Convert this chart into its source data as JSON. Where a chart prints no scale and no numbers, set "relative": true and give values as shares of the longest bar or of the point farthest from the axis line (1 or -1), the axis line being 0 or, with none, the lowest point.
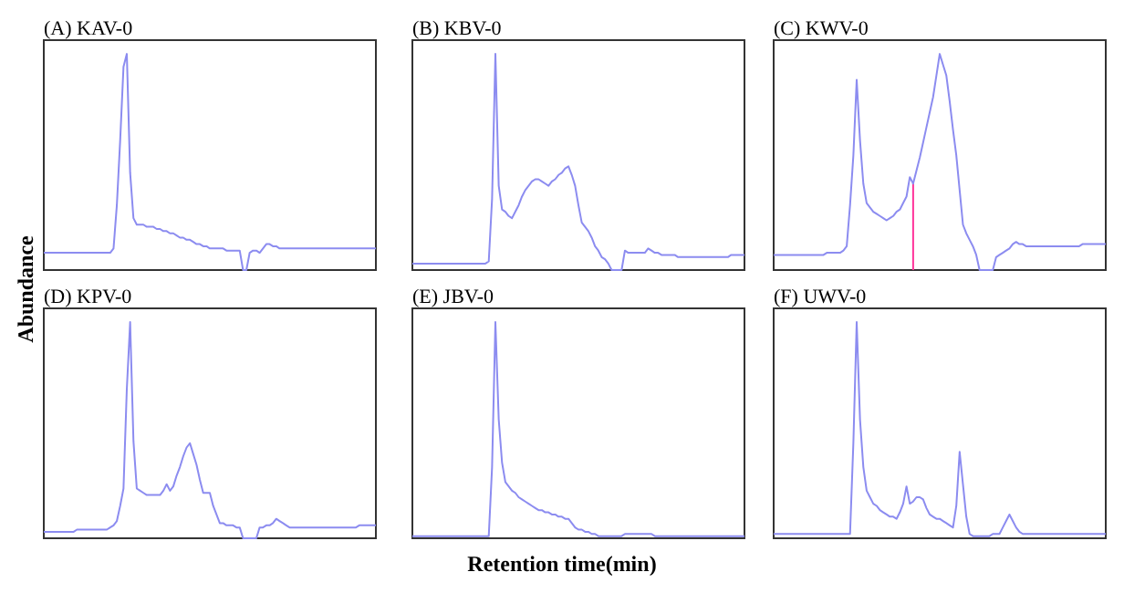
{
  "chart_data": [
    {
      "type": "line",
      "title": "(A) KAV-0",
      "ylabel": "Abundance",
      "relative": true,
      "color": "#8c8cf0",
      "categories": [
        null,
        null,
        null,
        null,
        null,
        null,
        null,
        null,
        null,
        null,
        null,
        null,
        null,
        null,
        null,
        null,
        null,
        null,
        null,
        null,
        null,
        null,
        null,
        null,
        null,
        null,
        null,
        null,
        null,
        null,
        null,
        null,
        null,
        null,
        null,
        null,
        null,
        null,
        null,
        null,
        null,
        null,
        null,
        null,
        null,
        null,
        null,
        null,
        null,
        null,
        null,
        null,
        null,
        null,
        null,
        null,
        null,
        null,
        null,
        null,
        null,
        null,
        null,
        null,
        null,
        null,
        null,
        null,
        null,
        null,
        null,
        null,
        null,
        null,
        null,
        null,
        null,
        null,
        null,
        null,
        null,
        null,
        null,
        null,
        null,
        null,
        null,
        null,
        null,
        null,
        null,
        null,
        null,
        null,
        null,
        null,
        null,
        null,
        null,
        null,
        null
      ],
      "values": [
        0.08,
        0.08,
        0.08,
        0.08,
        0.08,
        0.08,
        0.08,
        0.08,
        0.08,
        0.08,
        0.08,
        0.08,
        0.08,
        0.08,
        0.08,
        0.08,
        0.08,
        0.08,
        0.08,
        0.08,
        0.08,
        0.1,
        0.3,
        0.6,
        0.94,
        1,
        0.45,
        0.24,
        0.21,
        0.21,
        0.21,
        0.2,
        0.2,
        0.2,
        0.19,
        0.19,
        0.18,
        0.18,
        0.17,
        0.17,
        0.16,
        0.15,
        0.15,
        0.14,
        0.14,
        0.13,
        0.12,
        0.12,
        0.11,
        0.11,
        0.1,
        0.1,
        0.1,
        0.1,
        0.1,
        0.09,
        0.09,
        0.09,
        0.09,
        0.09,
        0,
        0,
        0.08,
        0.09,
        0.09,
        0.08,
        0.1,
        0.12,
        0.12,
        0.11,
        0.11,
        0.1,
        0.1,
        0.1,
        0.1,
        0.1,
        0.1,
        0.1,
        0.1,
        0.1,
        0.1,
        0.1,
        0.1,
        0.1,
        0.1,
        0.1,
        0.1,
        0.1,
        0.1,
        0.1,
        0.1,
        0.1,
        0.1,
        0.1,
        0.1,
        0.1,
        0.1,
        0.1,
        0.1,
        0.1,
        0.1
      ]
    },
    {
      "type": "line",
      "title": "(B) KBV-0",
      "relative": true,
      "color": "#8c8cf0",
      "categories": [
        null,
        null,
        null,
        null,
        null,
        null,
        null,
        null,
        null,
        null,
        null,
        null,
        null,
        null,
        null,
        null,
        null,
        null,
        null,
        null,
        null,
        null,
        null,
        null,
        null,
        null,
        null,
        null,
        null,
        null,
        null,
        null,
        null,
        null,
        null,
        null,
        null,
        null,
        null,
        null,
        null,
        null,
        null,
        null,
        null,
        null,
        null,
        null,
        null,
        null,
        null,
        null,
        null,
        null,
        null,
        null,
        null,
        null,
        null,
        null,
        null,
        null,
        null,
        null,
        null,
        null,
        null,
        null,
        null,
        null,
        null,
        null,
        null,
        null,
        null,
        null,
        null,
        null,
        null,
        null,
        null,
        null,
        null,
        null,
        null,
        null,
        null,
        null,
        null,
        null,
        null,
        null,
        null,
        null,
        null,
        null,
        null,
        null,
        null,
        null,
        null
      ],
      "values": [
        0.03,
        0.03,
        0.03,
        0.03,
        0.03,
        0.03,
        0.03,
        0.03,
        0.03,
        0.03,
        0.03,
        0.03,
        0.03,
        0.03,
        0.03,
        0.03,
        0.03,
        0.03,
        0.03,
        0.03,
        0.03,
        0.03,
        0.03,
        0.04,
        0.33,
        1,
        0.39,
        0.28,
        0.27,
        0.25,
        0.24,
        0.27,
        0.3,
        0.34,
        0.37,
        0.39,
        0.41,
        0.42,
        0.42,
        0.41,
        0.4,
        0.39,
        0.41,
        0.42,
        0.44,
        0.45,
        0.47,
        0.48,
        0.44,
        0.39,
        0.3,
        0.22,
        0.2,
        0.18,
        0.15,
        0.11,
        0.09,
        0.06,
        0.05,
        0.03,
        0,
        0,
        0,
        0,
        0.09,
        0.08,
        0.08,
        0.08,
        0.08,
        0.08,
        0.08,
        0.1,
        0.09,
        0.08,
        0.08,
        0.07,
        0.07,
        0.07,
        0.07,
        0.07,
        0.06,
        0.06,
        0.06,
        0.06,
        0.06,
        0.06,
        0.06,
        0.06,
        0.06,
        0.06,
        0.06,
        0.06,
        0.06,
        0.06,
        0.06,
        0.06,
        0.07,
        0.07,
        0.07,
        0.07,
        0.07
      ]
    },
    {
      "type": "line",
      "title": "(C) KWV-0",
      "relative": true,
      "color": "#8c8cf0",
      "categories": [
        null,
        null,
        null,
        null,
        null,
        null,
        null,
        null,
        null,
        null,
        null,
        null,
        null,
        null,
        null,
        null,
        null,
        null,
        null,
        null,
        null,
        null,
        null,
        null,
        null,
        null,
        null,
        null,
        null,
        null,
        null,
        null,
        null,
        null,
        null,
        null,
        null,
        null,
        null,
        null,
        null,
        null,
        null,
        null,
        null,
        null,
        null,
        null,
        null,
        null,
        null,
        null,
        null,
        null,
        null,
        null,
        null,
        null,
        null,
        null,
        null,
        null,
        null,
        null,
        null,
        null,
        null,
        null,
        null,
        null,
        null,
        null,
        null,
        null,
        null,
        null,
        null,
        null,
        null,
        null,
        null,
        null,
        null,
        null,
        null,
        null,
        null,
        null,
        null,
        null,
        null,
        null,
        null,
        null,
        null,
        null,
        null,
        null,
        null,
        null,
        null
      ],
      "values": [
        0.07,
        0.07,
        0.07,
        0.07,
        0.07,
        0.07,
        0.07,
        0.07,
        0.07,
        0.07,
        0.07,
        0.07,
        0.07,
        0.07,
        0.07,
        0.07,
        0.08,
        0.08,
        0.08,
        0.08,
        0.08,
        0.09,
        0.11,
        0.3,
        0.53,
        0.88,
        0.6,
        0.4,
        0.31,
        0.29,
        0.27,
        0.26,
        0.25,
        0.24,
        0.23,
        0.24,
        0.25,
        0.27,
        0.28,
        0.31,
        0.34,
        0.43,
        0.4,
        0.46,
        0.52,
        0.59,
        0.66,
        0.73,
        0.8,
        0.9,
        1,
        0.95,
        0.9,
        0.78,
        0.65,
        0.53,
        0.37,
        0.21,
        0.17,
        0.14,
        0.11,
        0.07,
        0,
        0,
        0,
        0,
        0,
        0.06,
        0.07,
        0.08,
        0.09,
        0.1,
        0.12,
        0.13,
        0.12,
        0.12,
        0.11,
        0.11,
        0.11,
        0.11,
        0.11,
        0.11,
        0.11,
        0.11,
        0.11,
        0.11,
        0.11,
        0.11,
        0.11,
        0.11,
        0.11,
        0.11,
        0.11,
        0.12,
        0.12,
        0.12,
        0.12,
        0.12,
        0.12,
        0.12,
        0.12
      ]
    },
    {
      "type": "line",
      "title": "(D) KPV-0",
      "relative": true,
      "color": "#8c8cf0",
      "categories": [
        null,
        null,
        null,
        null,
        null,
        null,
        null,
        null,
        null,
        null,
        null,
        null,
        null,
        null,
        null,
        null,
        null,
        null,
        null,
        null,
        null,
        null,
        null,
        null,
        null,
        null,
        null,
        null,
        null,
        null,
        null,
        null,
        null,
        null,
        null,
        null,
        null,
        null,
        null,
        null,
        null,
        null,
        null,
        null,
        null,
        null,
        null,
        null,
        null,
        null,
        null,
        null,
        null,
        null,
        null,
        null,
        null,
        null,
        null,
        null,
        null,
        null,
        null,
        null,
        null,
        null,
        null,
        null,
        null,
        null,
        null,
        null,
        null,
        null,
        null,
        null,
        null,
        null,
        null,
        null,
        null,
        null,
        null,
        null,
        null,
        null,
        null,
        null,
        null,
        null,
        null,
        null,
        null,
        null,
        null,
        null,
        null,
        null,
        null,
        null,
        null
      ],
      "values": [
        0.03,
        0.03,
        0.03,
        0.03,
        0.03,
        0.03,
        0.03,
        0.03,
        0.03,
        0.03,
        0.04,
        0.04,
        0.04,
        0.04,
        0.04,
        0.04,
        0.04,
        0.04,
        0.04,
        0.04,
        0.05,
        0.06,
        0.08,
        0.15,
        0.23,
        0.69,
        1,
        0.45,
        0.23,
        0.22,
        0.21,
        0.2,
        0.2,
        0.2,
        0.2,
        0.2,
        0.22,
        0.25,
        0.22,
        0.24,
        0.29,
        0.33,
        0.38,
        0.42,
        0.44,
        0.39,
        0.34,
        0.27,
        0.21,
        0.21,
        0.21,
        0.15,
        0.11,
        0.07,
        0.07,
        0.06,
        0.06,
        0.06,
        0.05,
        0.05,
        0,
        0,
        0,
        0,
        0,
        0.05,
        0.05,
        0.06,
        0.06,
        0.07,
        0.09,
        0.08,
        0.07,
        0.06,
        0.05,
        0.05,
        0.05,
        0.05,
        0.05,
        0.05,
        0.05,
        0.05,
        0.05,
        0.05,
        0.05,
        0.05,
        0.05,
        0.05,
        0.05,
        0.05,
        0.05,
        0.05,
        0.05,
        0.05,
        0.05,
        0.06,
        0.06,
        0.06,
        0.06,
        0.06,
        0.06
      ]
    },
    {
      "type": "line",
      "title": "(E) JBV-0",
      "xlabel": "Retention time(min)",
      "relative": true,
      "color": "#8c8cf0",
      "categories": [
        null,
        null,
        null,
        null,
        null,
        null,
        null,
        null,
        null,
        null,
        null,
        null,
        null,
        null,
        null,
        null,
        null,
        null,
        null,
        null,
        null,
        null,
        null,
        null,
        null,
        null,
        null,
        null,
        null,
        null,
        null,
        null,
        null,
        null,
        null,
        null,
        null,
        null,
        null,
        null,
        null,
        null,
        null,
        null,
        null,
        null,
        null,
        null,
        null,
        null,
        null,
        null,
        null,
        null,
        null,
        null,
        null,
        null,
        null,
        null,
        null,
        null,
        null,
        null,
        null,
        null,
        null,
        null,
        null,
        null,
        null,
        null,
        null,
        null,
        null,
        null,
        null,
        null,
        null,
        null,
        null,
        null,
        null,
        null,
        null,
        null,
        null,
        null,
        null,
        null,
        null,
        null,
        null,
        null,
        null,
        null,
        null,
        null,
        null,
        null,
        null
      ],
      "values": [
        0.01,
        0.01,
        0.01,
        0.01,
        0.01,
        0.01,
        0.01,
        0.01,
        0.01,
        0.01,
        0.01,
        0.01,
        0.01,
        0.01,
        0.01,
        0.01,
        0.01,
        0.01,
        0.01,
        0.01,
        0.01,
        0.01,
        0.01,
        0.01,
        0.33,
        1,
        0.55,
        0.35,
        0.26,
        0.24,
        0.22,
        0.21,
        0.19,
        0.18,
        0.17,
        0.16,
        0.15,
        0.14,
        0.13,
        0.13,
        0.12,
        0.12,
        0.11,
        0.11,
        0.1,
        0.1,
        0.09,
        0.09,
        0.07,
        0.05,
        0.04,
        0.04,
        0.03,
        0.03,
        0.02,
        0.02,
        0.01,
        0.01,
        0.01,
        0.01,
        0.01,
        0.01,
        0.01,
        0.01,
        0.02,
        0.02,
        0.02,
        0.02,
        0.02,
        0.02,
        0.02,
        0.02,
        0.02,
        0.01,
        0.01,
        0.01,
        0.01,
        0.01,
        0.01,
        0.01,
        0.01,
        0.01,
        0.01,
        0.01,
        0.01,
        0.01,
        0.01,
        0.01,
        0.01,
        0.01,
        0.01,
        0.01,
        0.01,
        0.01,
        0.01,
        0.01,
        0.01,
        0.01,
        0.01,
        0.01,
        0.01
      ]
    },
    {
      "type": "line",
      "title": "(F) UWV-0",
      "relative": true,
      "color": "#8c8cf0",
      "categories": [
        null,
        null,
        null,
        null,
        null,
        null,
        null,
        null,
        null,
        null,
        null,
        null,
        null,
        null,
        null,
        null,
        null,
        null,
        null,
        null,
        null,
        null,
        null,
        null,
        null,
        null,
        null,
        null,
        null,
        null,
        null,
        null,
        null,
        null,
        null,
        null,
        null,
        null,
        null,
        null,
        null,
        null,
        null,
        null,
        null,
        null,
        null,
        null,
        null,
        null,
        null,
        null,
        null,
        null,
        null,
        null,
        null,
        null,
        null,
        null,
        null,
        null,
        null,
        null,
        null,
        null,
        null,
        null,
        null,
        null,
        null,
        null,
        null,
        null,
        null,
        null,
        null,
        null,
        null,
        null,
        null,
        null,
        null,
        null,
        null,
        null,
        null,
        null,
        null,
        null,
        null,
        null,
        null,
        null,
        null,
        null,
        null,
        null,
        null,
        null,
        null
      ],
      "values": [
        0.02,
        0.02,
        0.02,
        0.02,
        0.02,
        0.02,
        0.02,
        0.02,
        0.02,
        0.02,
        0.02,
        0.02,
        0.02,
        0.02,
        0.02,
        0.02,
        0.02,
        0.02,
        0.02,
        0.02,
        0.02,
        0.02,
        0.02,
        0.02,
        0.44,
        1,
        0.55,
        0.33,
        0.22,
        0.19,
        0.16,
        0.15,
        0.13,
        0.12,
        0.11,
        0.1,
        0.1,
        0.09,
        0.12,
        0.16,
        0.24,
        0.16,
        0.17,
        0.19,
        0.19,
        0.18,
        0.14,
        0.11,
        0.1,
        0.09,
        0.09,
        0.08,
        0.07,
        0.06,
        0.05,
        0.15,
        0.4,
        0.25,
        0.1,
        0.02,
        0.01,
        0.01,
        0.01,
        0.01,
        0.01,
        0.01,
        0.02,
        0.02,
        0.02,
        0.05,
        0.08,
        0.11,
        0.08,
        0.05,
        0.03,
        0.02,
        0.02,
        0.02,
        0.02,
        0.02,
        0.02,
        0.02,
        0.02,
        0.02,
        0.02,
        0.02,
        0.02,
        0.02,
        0.02,
        0.02,
        0.02,
        0.02,
        0.02,
        0.02,
        0.02,
        0.02,
        0.02,
        0.02,
        0.02,
        0.02,
        0.02
      ]
    }
  ]
}
